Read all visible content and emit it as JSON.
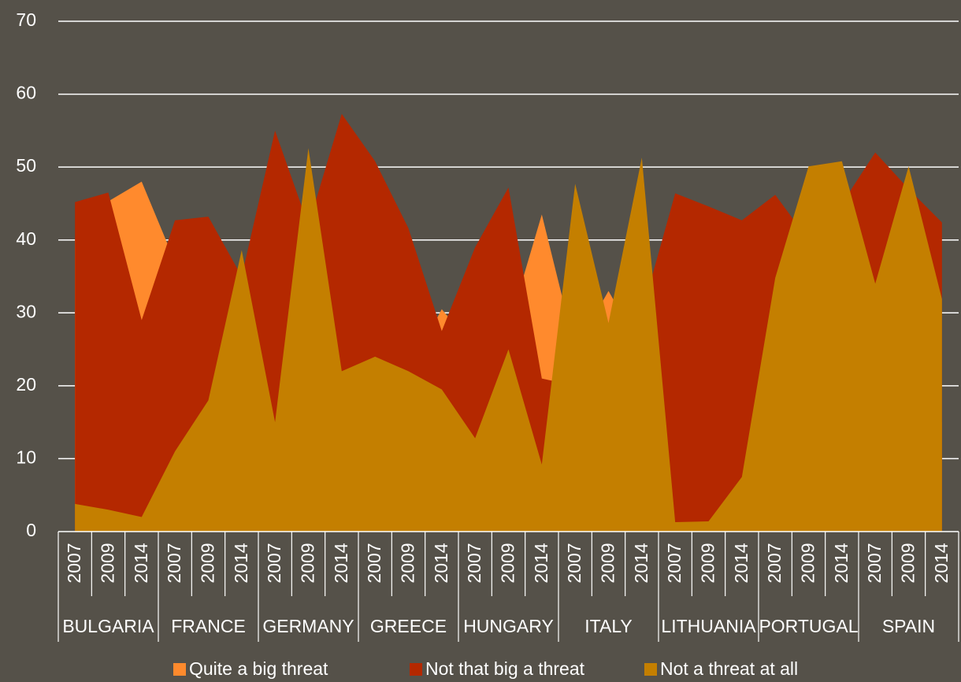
{
  "chart_data": {
    "type": "area",
    "categories": [
      "2007",
      "2009",
      "2014",
      "2007",
      "2009",
      "2014",
      "2007",
      "2009",
      "2014",
      "2007",
      "2009",
      "2014",
      "2007",
      "2009",
      "2014",
      "2007",
      "2009",
      "2014",
      "2007",
      "2009",
      "2014",
      "2007",
      "2009",
      "2014",
      "2007",
      "2009",
      "2014"
    ],
    "groups": [
      "BULGARIA",
      "FRANCE",
      "GERMANY",
      "GREECE",
      "HUNGARY",
      "ITALY",
      "LITHUANIA",
      "PORTUGAL",
      "SPAIN"
    ],
    "series": [
      {
        "name": "Quite a big threat",
        "color": "#ff8a2d",
        "values": [
          40,
          45.3,
          48,
          37,
          28,
          25,
          20,
          18,
          15,
          20,
          22,
          30.5,
          25,
          28,
          43.5,
          25,
          33,
          25,
          5,
          5,
          10,
          10,
          12,
          15,
          10,
          12,
          15
        ]
      },
      {
        "name": "Not that big a threat",
        "color": "#b42800",
        "values": [
          45.2,
          46.5,
          29,
          42.7,
          43.2,
          35,
          55,
          42,
          57.3,
          50.8,
          41.6,
          27.5,
          39,
          47.2,
          21,
          20,
          27,
          30,
          46.4,
          44.6,
          42.7,
          46.2,
          40,
          45,
          52,
          47,
          42.4
        ]
      },
      {
        "name": "Not a threat at all",
        "color": "#c47f00",
        "values": [
          3.8,
          3,
          2,
          11,
          18,
          38.6,
          15,
          52.6,
          22,
          24,
          22,
          19.5,
          12.8,
          25,
          9.2,
          47.7,
          28.6,
          51.3,
          1.3,
          1.4,
          7.5,
          34.8,
          50.1,
          50.8,
          34,
          50.1,
          31.9
        ]
      }
    ],
    "ylim": [
      0,
      70
    ],
    "yticks": [
      0,
      10,
      20,
      30,
      40,
      50,
      60,
      70
    ],
    "grid": true,
    "legend": "bottom"
  }
}
